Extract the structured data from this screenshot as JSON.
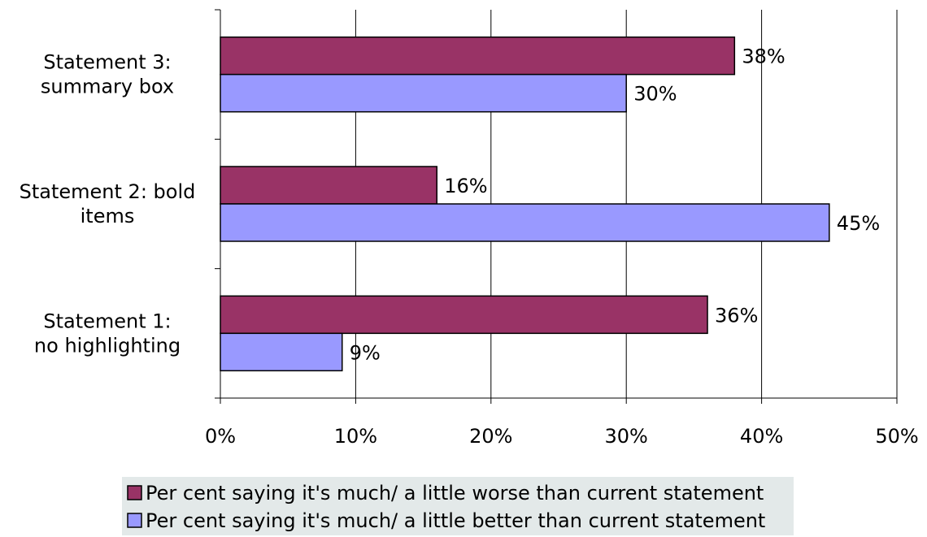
{
  "chart_data": {
    "type": "bar",
    "orientation": "horizontal",
    "categories": [
      [
        "Statement 3:",
        "summary box"
      ],
      [
        "Statement 2: bold",
        "items"
      ],
      [
        "Statement 1:",
        "no highlighting"
      ]
    ],
    "series": [
      {
        "name": "Per cent saying it's much/ a little worse than current statement",
        "color": "#993366",
        "values": [
          38,
          16,
          36
        ],
        "labels": [
          "38%",
          "16%",
          "36%"
        ]
      },
      {
        "name": "Per cent saying it's much/ a little better than current statement",
        "color": "#9999FF",
        "values": [
          30,
          45,
          9
        ],
        "labels": [
          "30%",
          "45%",
          "9%"
        ]
      }
    ],
    "xlim": [
      0,
      50
    ],
    "xticks": [
      0,
      10,
      20,
      30,
      40,
      50
    ],
    "xtick_labels": [
      "0%",
      "10%",
      "20%",
      "30%",
      "40%",
      "50%"
    ],
    "grid": "vertical",
    "legend_position": "bottom",
    "legend_background": "#E3E9E9"
  }
}
